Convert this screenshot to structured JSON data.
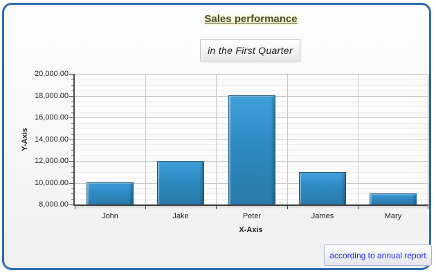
{
  "chart_data": {
    "type": "bar",
    "title": "Sales performance",
    "subtitle": "in the First Quarter",
    "categories": [
      "John",
      "Jake",
      "Peter",
      "James",
      "Mary"
    ],
    "values": [
      10000,
      12000,
      18000,
      11000,
      9000
    ],
    "xlabel": "X-Axis",
    "ylabel": "Y-Axis",
    "ylim": [
      8000,
      20000
    ],
    "y_major_step": 2000,
    "y_minor_step": 500,
    "y_tick_labels": [
      "8,000.00",
      "10,000.00",
      "12,000.00",
      "14,000.00",
      "16,000.00",
      "18,000.00",
      "20,000.00"
    ],
    "grid": true,
    "legend": "none",
    "annotation": "according to annual report"
  },
  "colors": {
    "frame_border": "#2e6cb0",
    "bar_fill_top": "#41a0dc",
    "bar_fill_bottom": "#2a7aab",
    "bar_border": "#1b5a84",
    "title_text": "#4a4936",
    "title_glow": "#f6eeb0",
    "annotation_text": "#2626d9",
    "grid_major": "#c4c4c4",
    "grid_minor": "#ececec",
    "axis_line": "#4c4c4c"
  }
}
